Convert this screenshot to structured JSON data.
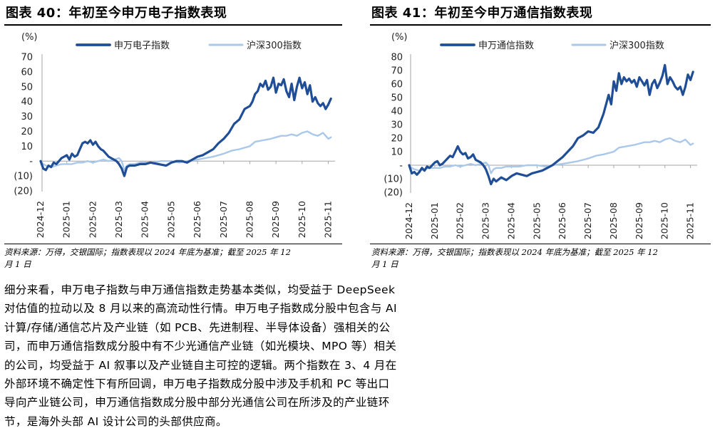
{
  "left_panel": {
    "title": "图表 40：年初至今申万电子指数表现",
    "note_line1": "资料来源：万得，交银国际；指数表现以 2024 年底为基准；截至 2025 年 12",
    "note_line2": "月 1 日"
  },
  "right_panel": {
    "title": "图表 41：年初至今申万通信指数表现",
    "note_line1": "资料来源：万得，交银国际；指数表现以 2024 年底为基准；截至 2025 年 12",
    "note_line2": "月 1 日"
  },
  "body_lines": [
    "细分来看，申万电子指数与申万通信指数走势基本类似，均受益于 DeepSeek",
    "对估值的拉动以及 8 月以来的高流动性行情。申万电子指数成分股中包含与 AI",
    "计算/存储/通信芯片及产业链（如 PCB、先进制程、半导体设备）强相关的公",
    "司，而申万通信指数成分股中有不少光通信产业链（如光模块、MPO 等）相关",
    "的公司，均受益于 AI 叙事以及产业链自主可控的逻辑。两个指数在 3、4 月在",
    "外部环境不确定性下有所回调，申万电子指数成分股中涉及手机和 PC 等出口",
    "导向产业链公司，申万通信指数成分股中部分光通信公司在所涉及的产业链环",
    "节，是海外头部 AI 设计公司的头部供应商。"
  ],
  "colors": {
    "dark_line": "#1f4e96",
    "light_line": "#a9c8ea",
    "axis": "#a6a6a6"
  },
  "chart_data": [
    {
      "type": "line",
      "ylabel": "(%)",
      "ylim": [
        -20,
        70
      ],
      "yticks": [
        70,
        60,
        50,
        40,
        30,
        20,
        10,
        0,
        -10,
        -20
      ],
      "ytick_labels": [
        "70",
        "60",
        "50",
        "40",
        "30",
        "20",
        "10",
        "-",
        "(10)",
        "(20)"
      ],
      "x_tick_labels": [
        "2024-12",
        "2025-01",
        "2025-02",
        "2025-03",
        "2025-04",
        "2025-05",
        "2025-06",
        "2025-07",
        "2025-08",
        "2025-09",
        "2025-10",
        "2025-11"
      ],
      "x_range": [
        0,
        11.15
      ],
      "legend_position": "top",
      "series": [
        {
          "name": "申万电子指数",
          "color": "#1f4e96",
          "x": [
            0.0,
            0.1,
            0.2,
            0.3,
            0.4,
            0.5,
            0.6,
            0.7,
            0.8,
            0.9,
            1.0,
            1.1,
            1.2,
            1.3,
            1.4,
            1.5,
            1.6,
            1.7,
            1.8,
            1.9,
            2.0,
            2.1,
            2.2,
            2.3,
            2.4,
            2.5,
            2.6,
            2.7,
            2.8,
            2.9,
            3.0,
            3.1,
            3.2,
            3.3,
            3.4,
            3.6,
            3.8,
            4.0,
            4.2,
            4.5,
            4.8,
            5.0,
            5.2,
            5.4,
            5.6,
            5.8,
            6.0,
            6.2,
            6.4,
            6.6,
            6.8,
            7.0,
            7.2,
            7.4,
            7.6,
            7.8,
            8.0,
            8.1,
            8.2,
            8.3,
            8.4,
            8.5,
            8.6,
            8.7,
            8.8,
            8.9,
            9.0,
            9.1,
            9.2,
            9.3,
            9.4,
            9.5,
            9.6,
            9.7,
            9.8,
            9.9,
            10.0,
            10.1,
            10.2,
            10.3,
            10.4,
            10.5,
            10.6,
            10.7,
            10.8,
            10.9,
            11.0,
            11.1
          ],
          "values": [
            0,
            -5,
            -6,
            -3,
            -4,
            -1,
            -2,
            0,
            2,
            3,
            4,
            1,
            5,
            3,
            4,
            8,
            12,
            13,
            12,
            14,
            11,
            13,
            10,
            8,
            7,
            5,
            3,
            2,
            1,
            0,
            -2,
            -5,
            -10,
            -4,
            -3,
            -3,
            -2,
            -2,
            -1,
            -2,
            -3,
            -1,
            0,
            0,
            -1,
            1,
            3,
            4,
            6,
            8,
            12,
            15,
            19,
            25,
            28,
            35,
            37,
            40,
            45,
            47,
            52,
            50,
            54,
            48,
            50,
            56,
            46,
            52,
            51,
            55,
            47,
            43,
            52,
            41,
            50,
            56,
            49,
            53,
            45,
            51,
            40,
            43,
            39,
            37,
            39,
            35,
            38,
            42
          ],
          "line_width": 3.2
        },
        {
          "name": "沪深300指数",
          "color": "#a9c8ea",
          "x": [
            0.0,
            0.1,
            0.2,
            0.4,
            0.6,
            0.8,
            1.0,
            1.2,
            1.4,
            1.6,
            1.8,
            2.0,
            2.2,
            2.4,
            2.6,
            2.8,
            3.0,
            3.1,
            3.2,
            3.3,
            3.4,
            3.6,
            3.8,
            4.0,
            4.3,
            4.6,
            5.0,
            5.3,
            5.6,
            6.0,
            6.3,
            6.6,
            7.0,
            7.3,
            7.6,
            8.0,
            8.2,
            8.5,
            8.8,
            9.0,
            9.2,
            9.4,
            9.6,
            9.8,
            10.0,
            10.2,
            10.4,
            10.6,
            10.8,
            11.0,
            11.1
          ],
          "values": [
            0,
            -2,
            -3,
            -4,
            -3,
            -2,
            -2,
            -2,
            -1,
            -1,
            0,
            -1,
            0,
            1,
            0,
            1,
            2,
            0,
            -6,
            -3,
            -2,
            -2,
            -1,
            -1,
            -1,
            0,
            0,
            -1,
            0,
            1,
            2,
            3,
            5,
            7,
            8,
            10,
            13,
            14,
            15,
            16,
            17,
            17,
            18,
            17,
            19,
            20,
            18,
            17,
            19,
            15,
            16
          ],
          "line_width": 2.4
        }
      ]
    },
    {
      "type": "line",
      "ylabel": "(%)",
      "ylim": [
        -20,
        80
      ],
      "yticks": [
        80,
        70,
        60,
        50,
        40,
        30,
        20,
        10,
        0,
        -10,
        -20
      ],
      "ytick_labels": [
        "80",
        "70",
        "60",
        "50",
        "40",
        "30",
        "20",
        "10",
        "-",
        "(10)",
        "(20)"
      ],
      "x_tick_labels": [
        "2024-12",
        "2025-01",
        "2025-02",
        "2025-03",
        "2025-04",
        "2025-05",
        "2025-06",
        "2025-07",
        "2025-08",
        "2025-09",
        "2025-10",
        "2025-11"
      ],
      "x_range": [
        0,
        11.15
      ],
      "legend_position": "top",
      "series": [
        {
          "name": "申万通信指数",
          "color": "#1f4e96",
          "x": [
            0.0,
            0.1,
            0.2,
            0.3,
            0.4,
            0.5,
            0.6,
            0.7,
            0.8,
            0.9,
            1.0,
            1.1,
            1.2,
            1.3,
            1.4,
            1.5,
            1.6,
            1.7,
            1.8,
            1.9,
            2.0,
            2.1,
            2.2,
            2.3,
            2.4,
            2.5,
            2.6,
            2.7,
            2.8,
            2.9,
            3.0,
            3.1,
            3.2,
            3.3,
            3.4,
            3.6,
            3.8,
            4.0,
            4.2,
            4.4,
            4.6,
            4.8,
            5.0,
            5.2,
            5.4,
            5.6,
            5.8,
            6.0,
            6.2,
            6.4,
            6.6,
            6.8,
            7.0,
            7.2,
            7.4,
            7.6,
            7.8,
            7.9,
            8.0,
            8.1,
            8.2,
            8.3,
            8.4,
            8.5,
            8.6,
            8.7,
            8.8,
            8.9,
            9.0,
            9.1,
            9.2,
            9.3,
            9.4,
            9.5,
            9.6,
            9.7,
            9.8,
            9.9,
            10.0,
            10.1,
            10.2,
            10.3,
            10.4,
            10.5,
            10.6,
            10.7,
            10.8,
            10.9,
            11.0,
            11.1
          ],
          "values": [
            0,
            -6,
            -5,
            -7,
            -5,
            -2,
            -4,
            -1,
            -2,
            0,
            2,
            3,
            0,
            1,
            3,
            5,
            7,
            6,
            10,
            14,
            10,
            8,
            9,
            5,
            6,
            8,
            4,
            3,
            2,
            0,
            -3,
            -8,
            -14,
            -10,
            -12,
            -9,
            -11,
            -8,
            -6,
            -7,
            -8,
            -6,
            -5,
            -4,
            -2,
            0,
            3,
            6,
            10,
            14,
            20,
            22,
            25,
            24,
            28,
            38,
            52,
            45,
            62,
            55,
            68,
            60,
            65,
            62,
            64,
            61,
            63,
            58,
            65,
            62,
            59,
            63,
            52,
            60,
            63,
            57,
            61,
            66,
            74,
            60,
            65,
            62,
            58,
            56,
            58,
            52,
            58,
            67,
            63,
            69
          ],
          "line_width": 3.2
        },
        {
          "name": "沪深300指数",
          "color": "#a9c8ea",
          "x": [
            0.0,
            0.1,
            0.2,
            0.4,
            0.6,
            0.8,
            1.0,
            1.2,
            1.4,
            1.6,
            1.8,
            2.0,
            2.2,
            2.4,
            2.6,
            2.8,
            3.0,
            3.1,
            3.2,
            3.3,
            3.4,
            3.6,
            3.8,
            4.0,
            4.3,
            4.6,
            5.0,
            5.3,
            5.6,
            6.0,
            6.3,
            6.6,
            7.0,
            7.3,
            7.6,
            8.0,
            8.2,
            8.5,
            8.8,
            9.0,
            9.2,
            9.4,
            9.6,
            9.8,
            10.0,
            10.2,
            10.4,
            10.6,
            10.8,
            11.0,
            11.1
          ],
          "values": [
            0,
            -2,
            -3,
            -4,
            -3,
            -2,
            -2,
            -2,
            -1,
            -1,
            0,
            -1,
            0,
            1,
            0,
            1,
            2,
            0,
            -6,
            -3,
            -2,
            -2,
            -1,
            -1,
            -1,
            0,
            0,
            -1,
            0,
            1,
            2,
            3,
            5,
            7,
            8,
            10,
            13,
            14,
            15,
            16,
            17,
            17,
            18,
            17,
            19,
            20,
            18,
            17,
            19,
            15,
            16
          ],
          "line_width": 2.4
        }
      ]
    }
  ]
}
